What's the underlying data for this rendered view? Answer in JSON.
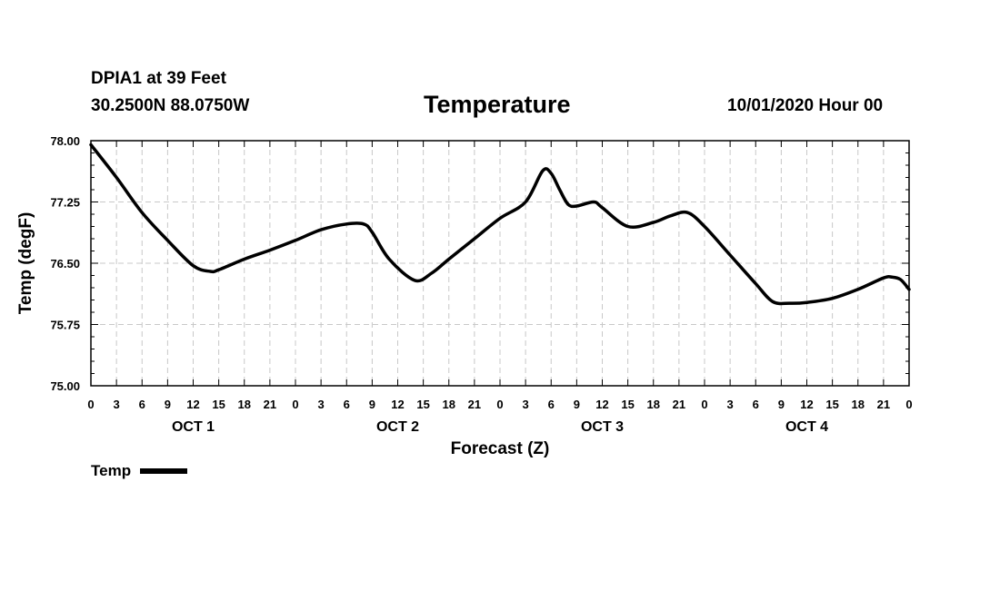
{
  "header": {
    "station": "DPIA1 at 39 Feet",
    "coords": "30.2500N 88.0750W",
    "title": "Temperature",
    "date": "10/01/2020 Hour 00"
  },
  "legend": {
    "label": "Temp"
  },
  "chart_data": {
    "type": "line",
    "title": "Temperature",
    "xlabel": "Forecast (Z)",
    "ylabel": "Temp (degF)",
    "ylim": [
      75.0,
      78.0
    ],
    "xlim_hours": [
      0,
      96
    ],
    "y_ticks": [
      "78.00",
      "77.25",
      "76.50",
      "75.75",
      "75.00"
    ],
    "x_tick_labels": [
      "0",
      "3",
      "6",
      "9",
      "12",
      "15",
      "18",
      "21",
      "0",
      "3",
      "6",
      "9",
      "12",
      "15",
      "18",
      "21",
      "0",
      "3",
      "6",
      "9",
      "12",
      "15",
      "18",
      "21",
      "0",
      "3",
      "6",
      "9",
      "12",
      "15",
      "18",
      "21",
      "0"
    ],
    "day_labels": [
      "OCT 1",
      "OCT 2",
      "OCT 3",
      "OCT 4"
    ],
    "grid": true,
    "legend_position": "bottom-left",
    "series": [
      {
        "name": "Temp",
        "color": "#000000",
        "x": [
          0,
          3,
          6,
          9,
          12,
          14,
          15,
          18,
          21,
          24,
          27,
          30,
          32,
          33,
          35,
          38,
          40,
          42,
          45,
          48,
          51,
          53,
          54,
          55,
          56,
          57,
          59,
          60,
          63,
          66,
          68,
          70,
          72,
          75,
          78,
          80,
          82,
          84,
          87,
          90,
          93,
          94,
          95,
          96
        ],
        "y": [
          77.95,
          77.55,
          77.12,
          76.78,
          76.47,
          76.4,
          76.42,
          76.55,
          76.66,
          76.78,
          76.91,
          76.98,
          76.98,
          76.88,
          76.55,
          76.29,
          76.38,
          76.55,
          76.8,
          77.05,
          77.25,
          77.63,
          77.6,
          77.4,
          77.22,
          77.2,
          77.25,
          77.18,
          76.95,
          77.0,
          77.08,
          77.12,
          76.95,
          76.6,
          76.25,
          76.03,
          76.01,
          76.02,
          76.07,
          76.18,
          76.32,
          76.33,
          76.3,
          76.18
        ]
      }
    ]
  }
}
